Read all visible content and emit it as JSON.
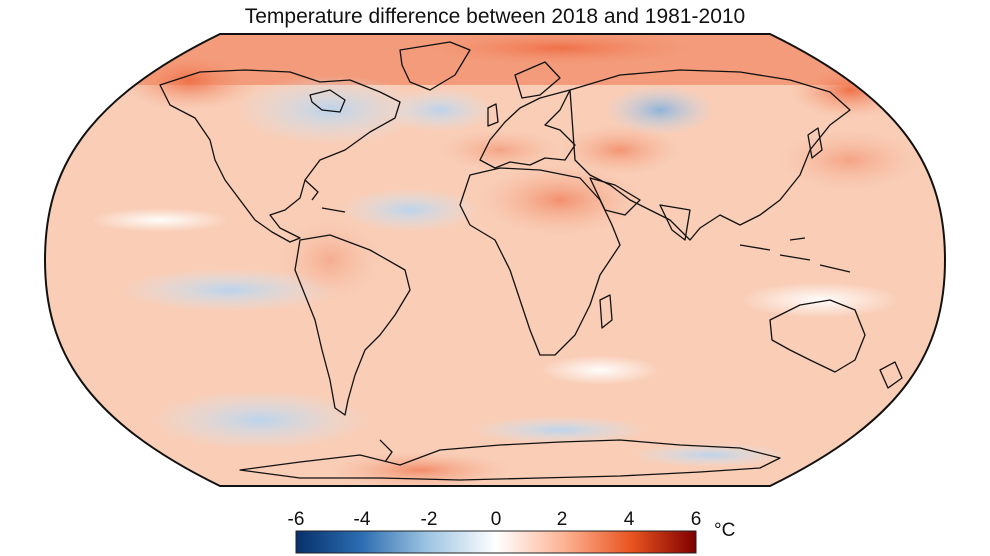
{
  "title": "Temperature difference between 2018 and 1981-2010",
  "colorbar": {
    "ticks": [
      "-6",
      "-4",
      "-2",
      "0",
      "2",
      "4",
      "6"
    ],
    "tick_values": [
      -6,
      -4,
      -2,
      0,
      2,
      4,
      6
    ],
    "range": [
      -6,
      6
    ],
    "unit": "°C",
    "colors": {
      "cold_extreme": "#08306b",
      "cold": "#4a86c0",
      "cool": "#c9def0",
      "neutral": "#ffffff",
      "warm": "#fcbba1",
      "hot": "#e8531f",
      "hot_extreme": "#7f0000"
    }
  },
  "map": {
    "projection": "robinson",
    "land_outline_color": "#111111",
    "background_anomaly_color": "#f9cdb6"
  }
}
